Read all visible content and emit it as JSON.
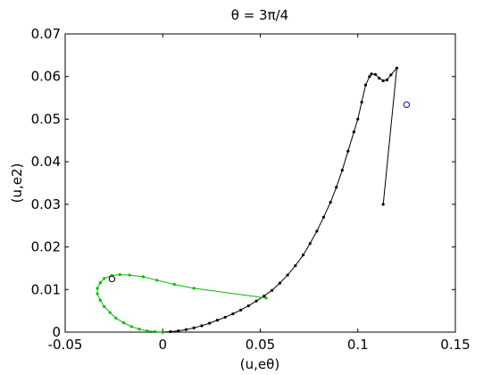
{
  "chart_data": {
    "type": "line",
    "title": "θ = 3π/4",
    "xlabel": "(u,eθ)",
    "ylabel": "(u,e2)",
    "xlim": [
      -0.05,
      0.15
    ],
    "ylim": [
      0,
      0.07
    ],
    "x_ticks": [
      -0.05,
      0,
      0.05,
      0.1,
      0.15
    ],
    "x_tick_labels": [
      "-0.05",
      "0",
      "0.05",
      "0.1",
      "0.15"
    ],
    "y_ticks": [
      0,
      0.01,
      0.02,
      0.03,
      0.04,
      0.05,
      0.06,
      0.07
    ],
    "y_tick_labels": [
      "0",
      "0.01",
      "0.02",
      "0.03",
      "0.04",
      "0.05",
      "0.06",
      "0.07"
    ],
    "grid": false,
    "series": [
      {
        "color": "#000000",
        "marker": "dot",
        "points": [
          [
            0.113,
            0.03
          ],
          [
            0.12,
            0.062
          ],
          [
            0.117,
            0.0604
          ],
          [
            0.115,
            0.0592
          ],
          [
            0.113,
            0.059
          ],
          [
            0.111,
            0.0596
          ],
          [
            0.109,
            0.0605
          ],
          [
            0.107,
            0.0606
          ],
          [
            0.106,
            0.06
          ],
          [
            0.104,
            0.058
          ],
          [
            0.102,
            0.054
          ],
          [
            0.1,
            0.05
          ],
          [
            0.098,
            0.047
          ],
          [
            0.095,
            0.0425
          ],
          [
            0.092,
            0.038
          ],
          [
            0.089,
            0.034
          ],
          [
            0.086,
            0.0305
          ],
          [
            0.0825,
            0.027
          ],
          [
            0.079,
            0.0237
          ],
          [
            0.0755,
            0.0208
          ],
          [
            0.072,
            0.0181
          ],
          [
            0.068,
            0.0156
          ],
          [
            0.064,
            0.0134
          ],
          [
            0.06,
            0.0115
          ],
          [
            0.056,
            0.0098
          ],
          [
            0.052,
            0.0085
          ],
          [
            0.048,
            0.0073
          ],
          [
            0.044,
            0.0062
          ],
          [
            0.04,
            0.0052
          ],
          [
            0.036,
            0.0043
          ],
          [
            0.032,
            0.0035
          ],
          [
            0.028,
            0.0028
          ],
          [
            0.024,
            0.0021
          ],
          [
            0.02,
            0.0015
          ],
          [
            0.016,
            0.001
          ],
          [
            0.012,
            0.0006
          ],
          [
            0.008,
            0.0003
          ],
          [
            0.004,
            0.0001
          ],
          [
            0.0,
            0.0
          ]
        ]
      },
      {
        "color": "#00bb00",
        "marker": "dot",
        "points": [
          [
            0.053,
            0.008
          ],
          [
            0.016,
            0.0103
          ],
          [
            0.006,
            0.0112
          ],
          [
            -0.003,
            0.0122
          ],
          [
            -0.01,
            0.013
          ],
          [
            -0.017,
            0.0134
          ],
          [
            -0.022,
            0.0135
          ],
          [
            -0.026,
            0.0133
          ],
          [
            -0.03,
            0.0126
          ],
          [
            -0.032,
            0.0116
          ],
          [
            -0.0335,
            0.0103
          ],
          [
            -0.0335,
            0.009
          ],
          [
            -0.032,
            0.0075
          ],
          [
            -0.03,
            0.006
          ],
          [
            -0.027,
            0.0046
          ],
          [
            -0.024,
            0.0033
          ],
          [
            -0.02,
            0.0022
          ],
          [
            -0.016,
            0.0013
          ],
          [
            -0.012,
            0.0007
          ],
          [
            -0.008,
            0.0003
          ],
          [
            -0.004,
            0.0001
          ],
          [
            0.0,
            0.0
          ]
        ]
      }
    ],
    "circle_markers": [
      {
        "x": -0.026,
        "y": 0.0125,
        "color": "#000000"
      },
      {
        "x": 0.125,
        "y": 0.0534,
        "color": "#0000cc"
      }
    ]
  }
}
